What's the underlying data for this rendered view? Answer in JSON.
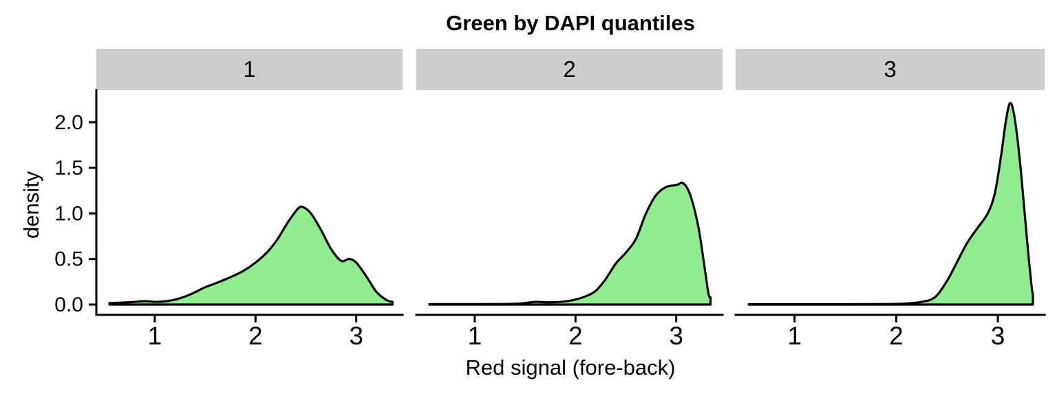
{
  "figure": {
    "title": "Green by DAPI quantiles",
    "x_axis_title": "Red signal (fore-back)",
    "y_axis_title": "density"
  },
  "style": {
    "fill_color": "#90EE90",
    "stroke_color": "#000000",
    "strip_bg": "#CCCCCC",
    "axis_color": "#000000",
    "curve_stroke_width": 3.2,
    "axis_stroke_width": 3
  },
  "chart_data": {
    "type": "area",
    "subtype": "faceted-density",
    "title": "Green by DAPI quantiles",
    "xlabel": "Red signal (fore-back)",
    "ylabel": "density",
    "grid": false,
    "legend": "none",
    "xlim": [
      0.42,
      3.46
    ],
    "ylim": [
      -0.113,
      2.353
    ],
    "x_ticks": [
      {
        "v": 1,
        "label": "1"
      },
      {
        "v": 2,
        "label": "2"
      },
      {
        "v": 3,
        "label": "3"
      }
    ],
    "y_ticks": [
      {
        "v": 0.0,
        "label": "0.0"
      },
      {
        "v": 0.5,
        "label": "0.5"
      },
      {
        "v": 1.0,
        "label": "1.0"
      },
      {
        "v": 1.5,
        "label": "1.5"
      },
      {
        "v": 2.0,
        "label": "2.0"
      }
    ],
    "facets": [
      {
        "label": "1",
        "peak": {
          "x": 2.46,
          "density": 1.07
        },
        "points": [
          [
            0.55,
            0.015
          ],
          [
            0.65,
            0.02
          ],
          [
            0.78,
            0.028
          ],
          [
            0.9,
            0.038
          ],
          [
            1.0,
            0.03
          ],
          [
            1.1,
            0.035
          ],
          [
            1.22,
            0.06
          ],
          [
            1.35,
            0.11
          ],
          [
            1.5,
            0.19
          ],
          [
            1.62,
            0.24
          ],
          [
            1.75,
            0.3
          ],
          [
            1.88,
            0.37
          ],
          [
            2.0,
            0.46
          ],
          [
            2.12,
            0.58
          ],
          [
            2.22,
            0.72
          ],
          [
            2.32,
            0.9
          ],
          [
            2.42,
            1.05
          ],
          [
            2.47,
            1.07
          ],
          [
            2.55,
            1.0
          ],
          [
            2.65,
            0.82
          ],
          [
            2.75,
            0.61
          ],
          [
            2.85,
            0.48
          ],
          [
            2.93,
            0.5
          ],
          [
            3.0,
            0.46
          ],
          [
            3.1,
            0.31
          ],
          [
            3.2,
            0.14
          ],
          [
            3.3,
            0.05
          ],
          [
            3.36,
            0.03
          ]
        ]
      },
      {
        "label": "2",
        "peak": {
          "x": 3.05,
          "density": 1.33
        },
        "points": [
          [
            0.55,
            0.005
          ],
          [
            0.9,
            0.005
          ],
          [
            1.25,
            0.006
          ],
          [
            1.45,
            0.012
          ],
          [
            1.6,
            0.03
          ],
          [
            1.72,
            0.025
          ],
          [
            1.85,
            0.03
          ],
          [
            1.98,
            0.05
          ],
          [
            2.1,
            0.09
          ],
          [
            2.2,
            0.15
          ],
          [
            2.3,
            0.28
          ],
          [
            2.4,
            0.45
          ],
          [
            2.5,
            0.57
          ],
          [
            2.6,
            0.72
          ],
          [
            2.7,
            1.0
          ],
          [
            2.8,
            1.2
          ],
          [
            2.9,
            1.29
          ],
          [
            3.0,
            1.31
          ],
          [
            3.07,
            1.33
          ],
          [
            3.14,
            1.2
          ],
          [
            3.22,
            0.85
          ],
          [
            3.28,
            0.42
          ],
          [
            3.32,
            0.12
          ],
          [
            3.34,
            0.08
          ]
        ]
      },
      {
        "label": "3",
        "peak": {
          "x": 3.12,
          "density": 2.21
        },
        "points": [
          [
            0.55,
            0.004
          ],
          [
            1.0,
            0.004
          ],
          [
            1.5,
            0.004
          ],
          [
            1.9,
            0.006
          ],
          [
            2.1,
            0.012
          ],
          [
            2.25,
            0.03
          ],
          [
            2.38,
            0.08
          ],
          [
            2.5,
            0.26
          ],
          [
            2.6,
            0.47
          ],
          [
            2.7,
            0.68
          ],
          [
            2.8,
            0.84
          ],
          [
            2.9,
            1.0
          ],
          [
            2.97,
            1.22
          ],
          [
            3.03,
            1.62
          ],
          [
            3.08,
            2.02
          ],
          [
            3.12,
            2.21
          ],
          [
            3.16,
            2.08
          ],
          [
            3.21,
            1.65
          ],
          [
            3.26,
            1.05
          ],
          [
            3.3,
            0.55
          ],
          [
            3.33,
            0.22
          ],
          [
            3.345,
            0.1
          ]
        ]
      }
    ]
  }
}
